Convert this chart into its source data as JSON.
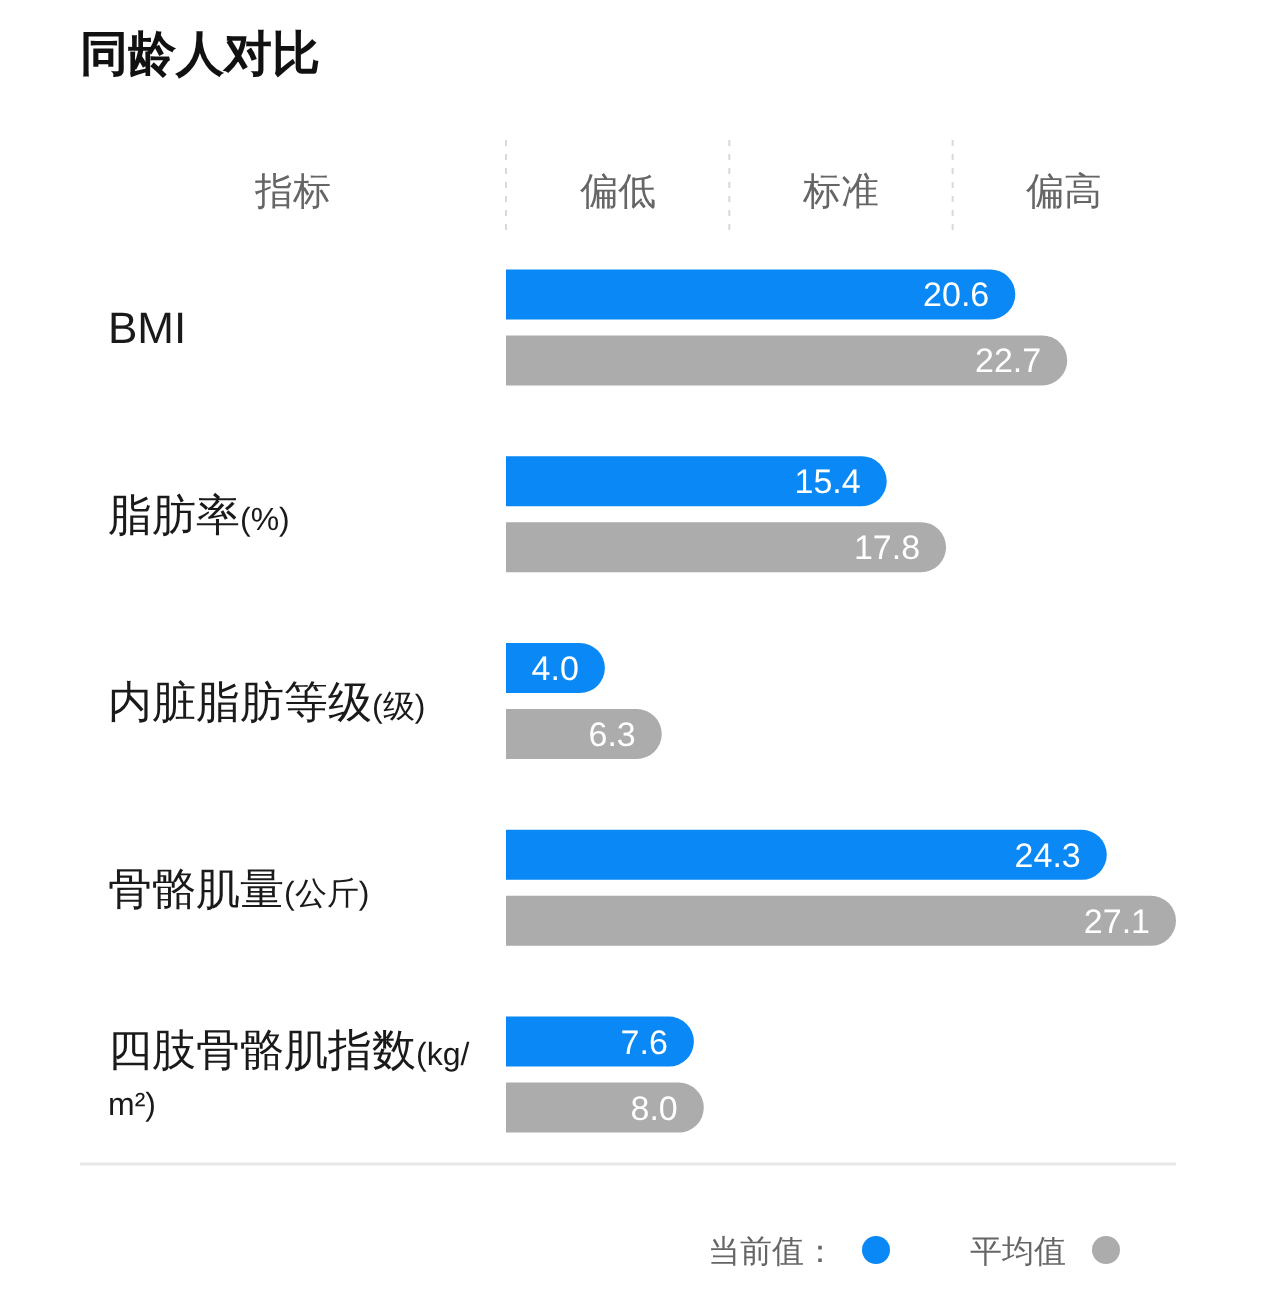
{
  "chart_data": {
    "type": "bar",
    "orientation": "horizontal",
    "title": "同龄人对比",
    "categories": [
      "BMI",
      "脂肪率(%)",
      "内脏脂肪等级(级)",
      "骨骼肌量(公斤)",
      "四肢骨骼肌指数(kg/m²)"
    ],
    "series": [
      {
        "name": "当前值：",
        "color": "#0a88f5",
        "values": [
          20.6,
          15.4,
          4.0,
          24.3,
          7.6
        ],
        "value_labels": [
          "20.6",
          "15.4",
          "4.0",
          "24.3",
          "7.6"
        ]
      },
      {
        "name": "平均值",
        "color": "#acacac",
        "values": [
          22.7,
          17.8,
          6.3,
          27.1,
          8.0
        ],
        "value_labels": [
          "22.7",
          "17.8",
          "6.3",
          "27.1",
          "8.0"
        ]
      }
    ],
    "annotations": [
      "指标",
      "偏低",
      "标准",
      "偏高"
    ],
    "legend": "bottom right"
  }
}
